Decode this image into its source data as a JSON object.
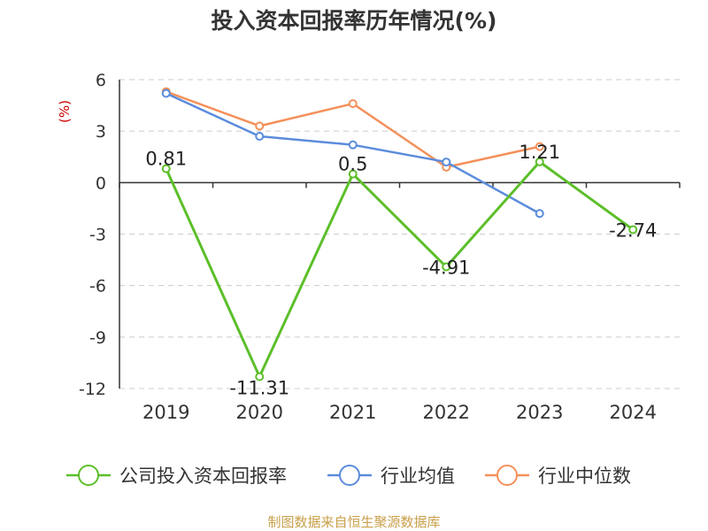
{
  "title": "投入资本回报率历年情况(%)",
  "source": "制图数据来自恒生聚源数据库",
  "colors": {
    "company": "#5cbf2a",
    "industry_mean": "#5b8cdc",
    "industry_median": "#f4905a",
    "grid": "#cccccc",
    "source": "#c8a04a"
  },
  "chart_data": {
    "type": "line",
    "title": "投入资本回报率历年情况(%)",
    "ylabel": "(%)",
    "xlabel": "",
    "categories": [
      "2019",
      "2020",
      "2021",
      "2022",
      "2023",
      "2024"
    ],
    "ylim": [
      -12,
      6
    ],
    "yticks": [
      6,
      3,
      0,
      -3,
      -6,
      -9,
      -12
    ],
    "grid": true,
    "legend_position": "bottom",
    "series": [
      {
        "name": "公司投入资本回报率",
        "color": "#5cbf2a",
        "values": [
          0.81,
          -11.31,
          0.5,
          -4.91,
          1.21,
          -2.74
        ],
        "labels": [
          "0.81",
          "-11.31",
          "0.5",
          "-4.91",
          "1.21",
          "-2.74"
        ]
      },
      {
        "name": "行业均值",
        "color": "#5b8cdc",
        "values": [
          5.2,
          2.7,
          2.2,
          1.2,
          -1.8,
          null
        ]
      },
      {
        "name": "行业中位数",
        "color": "#f4905a",
        "values": [
          5.3,
          3.3,
          4.6,
          0.9,
          2.1,
          null
        ]
      }
    ]
  }
}
